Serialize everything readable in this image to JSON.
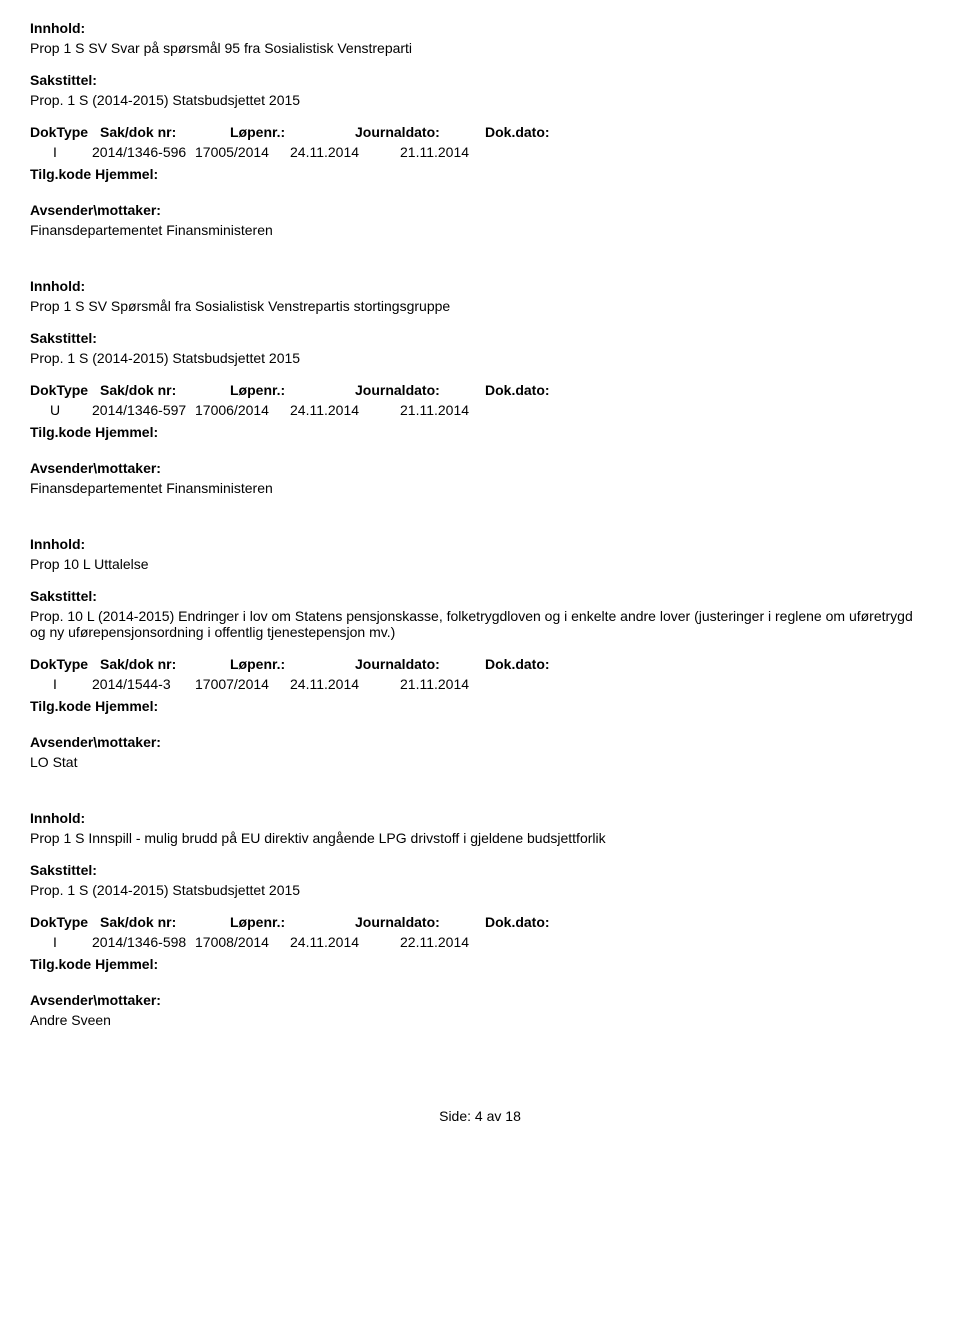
{
  "labels": {
    "innhold": "Innhold:",
    "sakstittel": "Sakstittel:",
    "doktype": "DokType",
    "sakdoknr": "Sak/dok nr:",
    "lopenr": "Løpenr.:",
    "journaldato": "Journaldato:",
    "dokdato": "Dok.dato:",
    "tilgkode": "Tilg.kode",
    "hjemmel": "Hjemmel:",
    "avsender": "Avsender\\mottaker:"
  },
  "entries": [
    {
      "innhold": "Prop 1 S SV Svar på spørsmål 95 fra Sosialistisk Venstreparti",
      "sakstittel": "Prop. 1 S (2014-2015) Statsbudsjettet 2015",
      "doktype": "I",
      "sakdoknr": "2014/1346-596",
      "lopenr": "17005/2014",
      "journaldato": "24.11.2014",
      "dokdato": "21.11.2014",
      "avsender": "Finansdepartementet Finansministeren"
    },
    {
      "innhold": "Prop 1 S SV Spørsmål fra Sosialistisk Venstrepartis stortingsgruppe",
      "sakstittel": "Prop. 1 S (2014-2015) Statsbudsjettet 2015",
      "doktype": "U",
      "sakdoknr": "2014/1346-597",
      "lopenr": "17006/2014",
      "journaldato": "24.11.2014",
      "dokdato": "21.11.2014",
      "avsender": "Finansdepartementet Finansministeren"
    },
    {
      "innhold": "Prop 10 L Uttalelse",
      "sakstittel": "Prop. 10 L (2014-2015) Endringer i lov om Statens pensjonskasse, folketrygdloven og i enkelte andre lover (justeringer i reglene om uføretrygd og ny uførepensjonsordning i offentlig tjenestepensjon mv.)",
      "doktype": "I",
      "sakdoknr": "2014/1544-3",
      "lopenr": "17007/2014",
      "journaldato": "24.11.2014",
      "dokdato": "21.11.2014",
      "avsender": "LO Stat"
    },
    {
      "innhold": "Prop 1 S Innspill - mulig brudd på EU direktiv angående LPG drivstoff i gjeldene budsjettforlik",
      "sakstittel": "Prop. 1 S (2014-2015) Statsbudsjettet 2015",
      "doktype": "I",
      "sakdoknr": "2014/1346-598",
      "lopenr": "17008/2014",
      "journaldato": "24.11.2014",
      "dokdato": "22.11.2014",
      "avsender": "Andre Sveen"
    }
  ],
  "footer": {
    "prefix": "Side:",
    "page": "4",
    "sep": "av",
    "total": "18"
  }
}
